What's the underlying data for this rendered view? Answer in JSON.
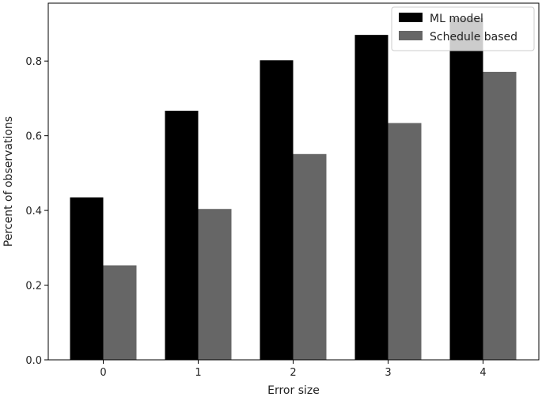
{
  "chart_data": {
    "type": "bar",
    "categories": [
      "0",
      "1",
      "2",
      "3",
      "4"
    ],
    "series": [
      {
        "name": "ML model",
        "color": "#000000",
        "values": [
          0.435,
          0.667,
          0.802,
          0.87,
          0.915
        ]
      },
      {
        "name": "Schedule based",
        "color": "#666666",
        "values": [
          0.253,
          0.404,
          0.551,
          0.634,
          0.771
        ]
      }
    ],
    "xlabel": "Error size",
    "ylabel": "Percent of observations",
    "ylim": [
      0,
      0.955
    ],
    "yticks": [
      "0.0",
      "0.2",
      "0.4",
      "0.6",
      "0.8"
    ],
    "grid": false,
    "legend_position": "top-right"
  }
}
